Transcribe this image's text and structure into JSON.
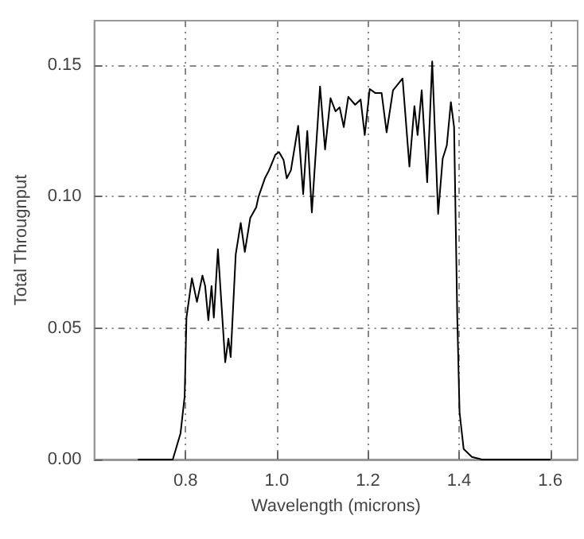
{
  "chart_data": {
    "type": "line",
    "xlabel": "Wavelength (microns)",
    "ylabel": "Total Througnput",
    "xlim": [
      0.6,
      1.66
    ],
    "ylim": [
      0,
      0.167
    ],
    "xticks": [
      {
        "value": 0.8,
        "label": "0.8"
      },
      {
        "value": 1.0,
        "label": "1.0"
      },
      {
        "value": 1.2,
        "label": "1.2"
      },
      {
        "value": 1.4,
        "label": "1.4"
      },
      {
        "value": 1.6,
        "label": "1.6"
      }
    ],
    "yticks": [
      {
        "value": 0,
        "label": "0.00"
      },
      {
        "value": 0.05,
        "label": "0.05"
      },
      {
        "value": 0.1,
        "label": "0.10"
      },
      {
        "value": 0.15,
        "label": "0.15"
      }
    ],
    "grid": true,
    "marker": "none",
    "line_style": "solid",
    "series": [
      {
        "color": "#000000",
        "x": [
          0.697,
          0.772,
          0.789,
          0.798,
          0.802,
          0.814,
          0.825,
          0.837,
          0.843,
          0.85,
          0.857,
          0.862,
          0.871,
          0.887,
          0.894,
          0.899,
          0.91,
          0.921,
          0.93,
          0.942,
          0.955,
          0.96,
          0.974,
          0.983,
          0.997,
          1.005,
          1.015,
          1.022,
          1.031,
          1.047,
          1.058,
          1.067,
          1.077,
          1.095,
          1.106,
          1.118,
          1.129,
          1.138,
          1.147,
          1.157,
          1.172,
          1.184,
          1.193,
          1.204,
          1.216,
          1.23,
          1.241,
          1.255,
          1.276,
          1.291,
          1.302,
          1.309,
          1.318,
          1.33,
          1.341,
          1.354,
          1.364,
          1.373,
          1.382,
          1.389,
          1.396,
          1.401,
          1.41,
          1.428,
          1.45,
          1.599
        ],
        "values": [
          0,
          0,
          0.01,
          0.024,
          0.054,
          0.069,
          0.06,
          0.07,
          0.066,
          0.053,
          0.066,
          0.054,
          0.08,
          0.037,
          0.046,
          0.039,
          0.078,
          0.09,
          0.079,
          0.092,
          0.096,
          0.1,
          0.107,
          0.11,
          0.116,
          0.117,
          0.114,
          0.107,
          0.11,
          0.127,
          0.101,
          0.125,
          0.094,
          0.142,
          0.118,
          0.1375,
          0.1325,
          0.134,
          0.1265,
          0.138,
          0.135,
          0.137,
          0.1235,
          0.141,
          0.1395,
          0.1395,
          0.1245,
          0.1405,
          0.145,
          0.1115,
          0.1345,
          0.1235,
          0.1405,
          0.1055,
          0.1515,
          0.0935,
          0.1145,
          0.1195,
          0.136,
          0.1265,
          0.054,
          0.018,
          0.004,
          0.001,
          0,
          0
        ]
      }
    ]
  }
}
